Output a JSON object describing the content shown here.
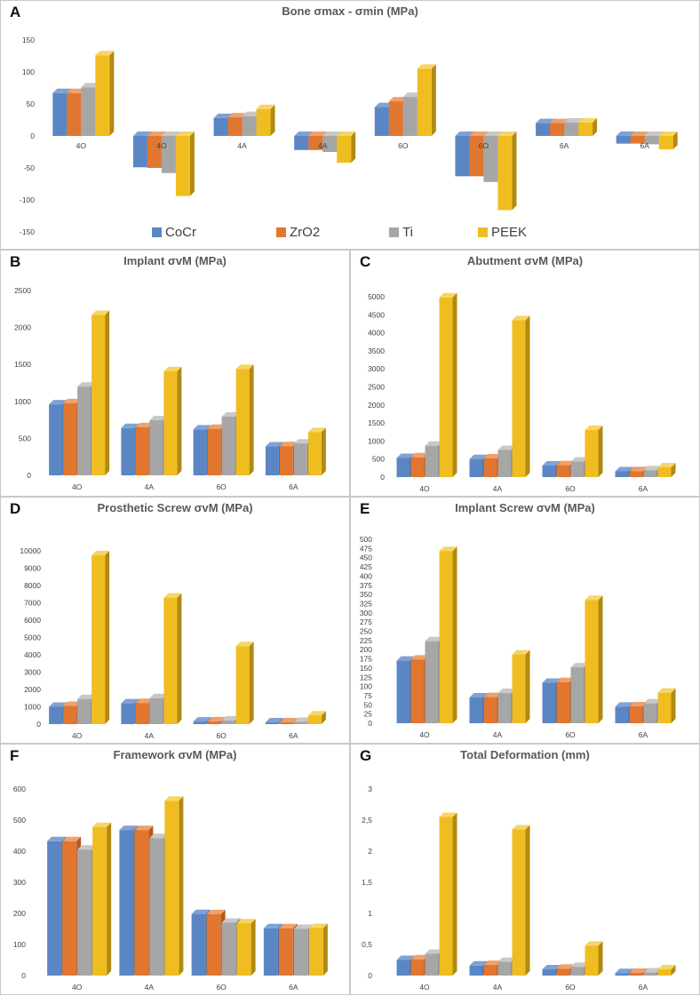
{
  "series_names": [
    "CoCr",
    "ZrO2",
    "Ti",
    "PEEK"
  ],
  "legend": [
    {
      "label": "CoCr",
      "color": "#5b86c4"
    },
    {
      "label": "ZrO2",
      "color": "#e0762f"
    },
    {
      "label": "Ti",
      "color": "#a6a6a6"
    },
    {
      "label": "PEEK",
      "color": "#f0bd21"
    }
  ],
  "panels": {
    "A": {
      "label": "A",
      "title": "Bone σmax  - σmin    (MPa)"
    },
    "B": {
      "label": "B",
      "title": "Implant σvM  (MPa)"
    },
    "C": {
      "label": "C",
      "title": "Abutment σvM  (MPa)"
    },
    "D": {
      "label": "D",
      "title": "Prosthetic Screw σvM  (MPa)"
    },
    "E": {
      "label": "E",
      "title": "Implant Screw σvM  (MPa)"
    },
    "F": {
      "label": "F",
      "title": "Framework σvM  (MPa)"
    },
    "G": {
      "label": "G",
      "title": "Total Deformation (mm)"
    }
  },
  "chart_data": [
    {
      "id": "A",
      "type": "bar",
      "title": "Bone σmax  - σmin    (MPa)",
      "categories": [
        "4O",
        "4O",
        "4A",
        "4A",
        "6O",
        "6O",
        "6A",
        "6A"
      ],
      "series": [
        {
          "name": "CoCr",
          "values": [
            67,
            -49,
            28,
            -22,
            45,
            -63,
            20,
            -12
          ]
        },
        {
          "name": "ZrO2",
          "values": [
            67,
            -50,
            29,
            -22,
            54,
            -63,
            20,
            -12
          ]
        },
        {
          "name": "Ti",
          "values": [
            76,
            -58,
            31,
            -25,
            61,
            -72,
            21,
            -13
          ]
        },
        {
          "name": "PEEK",
          "values": [
            126,
            -94,
            42,
            -42,
            105,
            -116,
            21,
            -21
          ]
        }
      ],
      "ylim": [
        -150,
        150
      ],
      "yticks": [
        -150,
        -100,
        -50,
        0,
        50,
        100,
        150
      ],
      "ytick_labels": [
        "-150",
        "-100",
        "-50",
        "0",
        "50",
        "100",
        "150"
      ],
      "legend_position": "bottom"
    },
    {
      "id": "B",
      "type": "bar",
      "title": "Implant σvM  (MPa)",
      "categories": [
        "4O",
        "4A",
        "6O",
        "6A"
      ],
      "series": [
        {
          "name": "CoCr",
          "values": [
            960,
            640,
            620,
            390
          ]
        },
        {
          "name": "ZrO2",
          "values": [
            975,
            650,
            630,
            395
          ]
        },
        {
          "name": "Ti",
          "values": [
            1200,
            745,
            795,
            430
          ]
        },
        {
          "name": "PEEK",
          "values": [
            2170,
            1410,
            1440,
            585
          ]
        }
      ],
      "ylim": [
        0,
        2500
      ],
      "yticks": [
        0,
        500,
        1000,
        1500,
        2000,
        2500
      ],
      "ytick_labels": [
        "0",
        "500",
        "1000",
        "1500",
        "2000",
        "2500"
      ]
    },
    {
      "id": "C",
      "type": "bar",
      "title": "Abutment σvM  (MPa)",
      "categories": [
        "4O",
        "4A",
        "6O",
        "6A"
      ],
      "series": [
        {
          "name": "CoCr",
          "values": [
            530,
            500,
            320,
            160
          ]
        },
        {
          "name": "ZrO2",
          "values": [
            550,
            520,
            330,
            165
          ]
        },
        {
          "name": "Ti",
          "values": [
            870,
            750,
            430,
            190
          ]
        },
        {
          "name": "PEEK",
          "values": [
            4980,
            4350,
            1310,
            270
          ]
        }
      ],
      "ylim": [
        0,
        5000
      ],
      "yticks": [
        0,
        500,
        1000,
        1500,
        2000,
        2500,
        3000,
        3500,
        4000,
        4500,
        5000
      ],
      "ytick_labels": [
        "0",
        "500",
        "1000",
        "1500",
        "2000",
        "2500",
        "3000",
        "3500",
        "4000",
        "4500",
        "5000"
      ]
    },
    {
      "id": "D",
      "type": "bar",
      "title": "Prosthetic Screw σvM  (MPa)",
      "categories": [
        "4O",
        "4A",
        "6O",
        "6A"
      ],
      "series": [
        {
          "name": "CoCr",
          "values": [
            1000,
            1200,
            150,
            100
          ]
        },
        {
          "name": "ZrO2",
          "values": [
            1050,
            1220,
            160,
            105
          ]
        },
        {
          "name": "Ti",
          "values": [
            1450,
            1500,
            210,
            130
          ]
        },
        {
          "name": "PEEK",
          "values": [
            9750,
            7300,
            4500,
            500
          ]
        }
      ],
      "ylim": [
        0,
        10000
      ],
      "yticks": [
        0,
        1000,
        2000,
        3000,
        4000,
        5000,
        6000,
        7000,
        8000,
        9000,
        10000
      ],
      "ytick_labels": [
        "0",
        "1000",
        "2000",
        "3000",
        "4000",
        "5000",
        "6000",
        "7000",
        "8000",
        "9000",
        "10000"
      ]
    },
    {
      "id": "E",
      "type": "bar",
      "title": "Implant Screw σvM  (MPa)",
      "categories": [
        "4O",
        "4A",
        "6O",
        "6A"
      ],
      "series": [
        {
          "name": "CoCr",
          "values": [
            170,
            70,
            110,
            45
          ]
        },
        {
          "name": "ZrO2",
          "values": [
            173,
            71,
            112,
            46
          ]
        },
        {
          "name": "Ti",
          "values": [
            223,
            82,
            152,
            54
          ]
        },
        {
          "name": "PEEK",
          "values": [
            468,
            187,
            335,
            83
          ]
        }
      ],
      "ylim": [
        0,
        500
      ],
      "yticks": [
        0,
        25,
        50,
        75,
        100,
        125,
        150,
        175,
        200,
        225,
        250,
        275,
        300,
        325,
        350,
        375,
        400,
        425,
        450,
        475,
        500
      ],
      "ytick_labels": [
        "0",
        "25",
        "50",
        "75",
        "100",
        "125",
        "150",
        "175",
        "200",
        "225",
        "250",
        "275",
        "300",
        "325",
        "350",
        "375",
        "400",
        "425",
        "450",
        "475",
        "500"
      ]
    },
    {
      "id": "F",
      "type": "bar",
      "title": "Framework σvM  (MPa)",
      "categories": [
        "4O",
        "4A",
        "6O",
        "6A"
      ],
      "series": [
        {
          "name": "CoCr",
          "values": [
            432,
            468,
            198,
            152
          ]
        },
        {
          "name": "ZrO2",
          "values": [
            432,
            468,
            197,
            152
          ]
        },
        {
          "name": "Ti",
          "values": [
            405,
            442,
            170,
            150
          ]
        },
        {
          "name": "PEEK",
          "values": [
            478,
            562,
            168,
            153
          ]
        }
      ],
      "ylim": [
        0,
        600
      ],
      "yticks": [
        0,
        100,
        200,
        300,
        400,
        500,
        600
      ],
      "ytick_labels": [
        "0",
        "100",
        "200",
        "300",
        "400",
        "500",
        "600"
      ]
    },
    {
      "id": "G",
      "type": "bar",
      "title": "Total Deformation (mm)",
      "categories": [
        "4O",
        "4A",
        "6O",
        "6A"
      ],
      "series": [
        {
          "name": "CoCr",
          "values": [
            0.25,
            0.16,
            0.1,
            0.04
          ]
        },
        {
          "name": "ZrO2",
          "values": [
            0.26,
            0.17,
            0.11,
            0.045
          ]
        },
        {
          "name": "Ti",
          "values": [
            0.35,
            0.22,
            0.14,
            0.05
          ]
        },
        {
          "name": "PEEK",
          "values": [
            2.55,
            2.35,
            0.48,
            0.1
          ]
        }
      ],
      "ylim": [
        0,
        3
      ],
      "yticks": [
        0,
        0.5,
        1,
        1.5,
        2,
        2.5,
        3
      ],
      "ytick_labels": [
        "0",
        "0,5",
        "1",
        "1,5",
        "2",
        "2,5",
        "3"
      ]
    }
  ]
}
